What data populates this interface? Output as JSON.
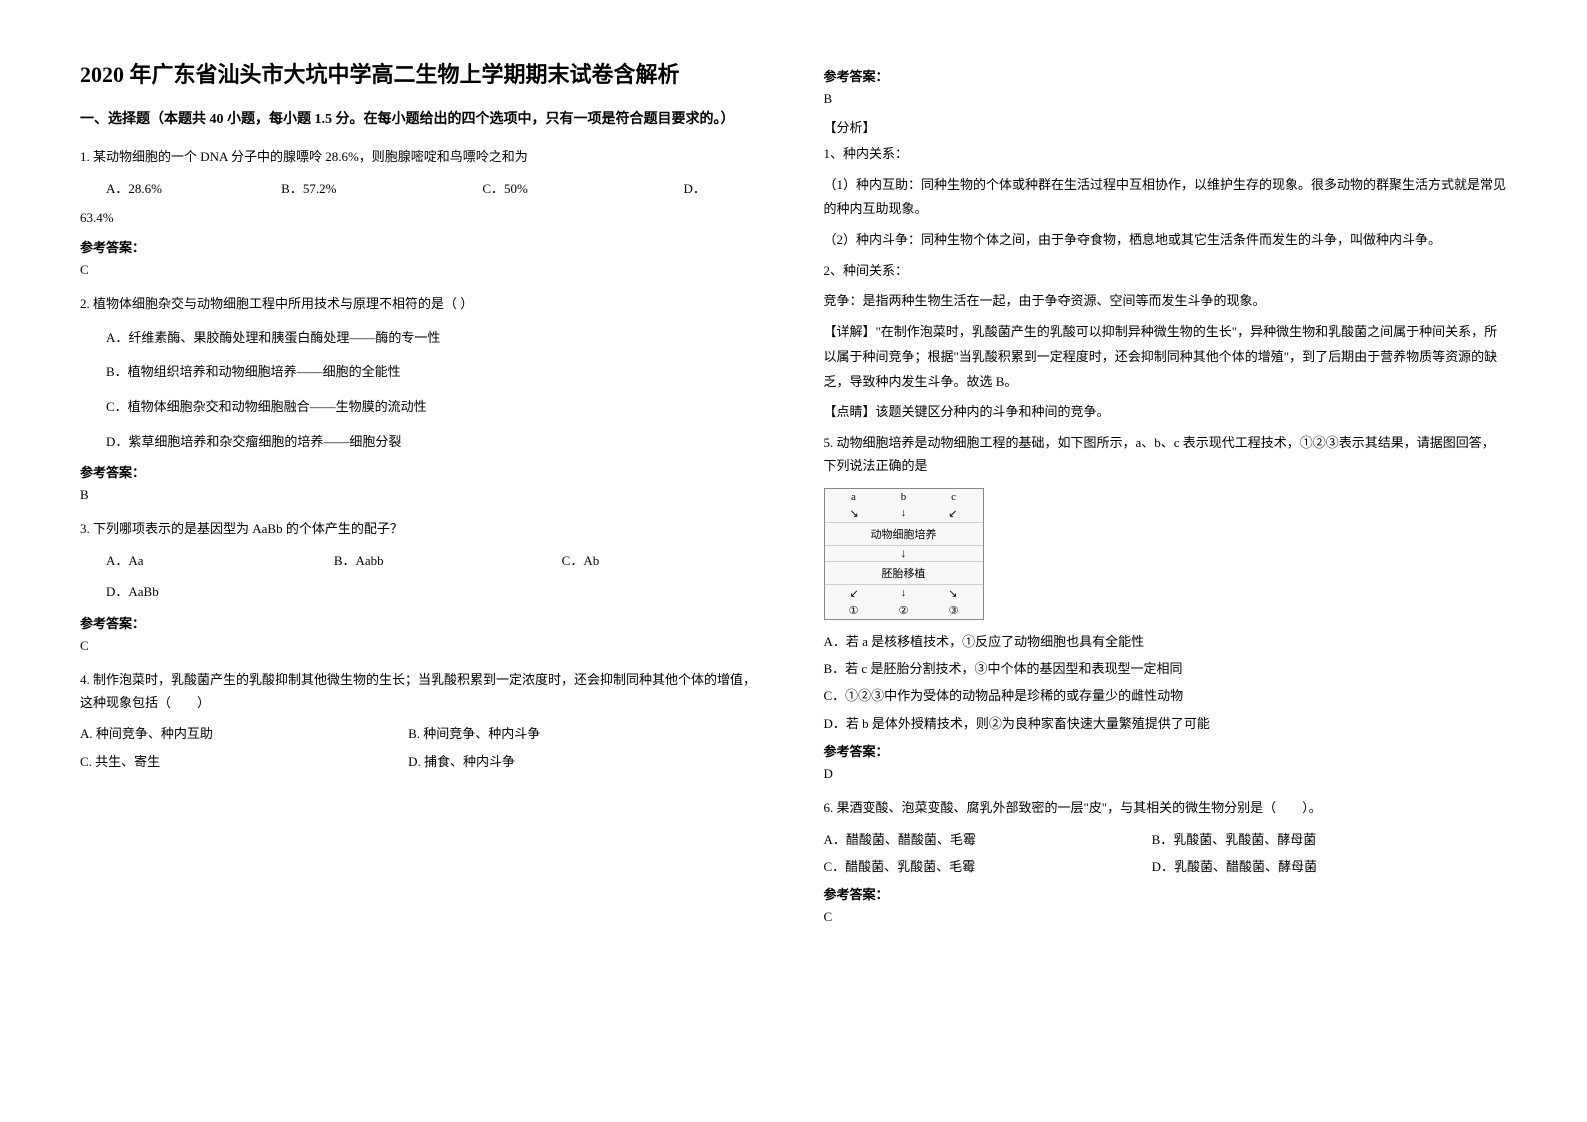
{
  "title": "2020 年广东省汕头市大坑中学高二生物上学期期末试卷含解析",
  "section": "一、选择题（本题共 40 小题，每小题 1.5 分。在每小题给出的四个选项中，只有一项是符合题目要求的。）",
  "answerLabel": "参考答案：",
  "q1": {
    "text": "1. 某动物细胞的一个 DNA 分子中的腺嘌呤 28.6%，则胞腺嘧啶和鸟嘌呤之和为",
    "A": "A．28.6%",
    "B": "B．57.2%",
    "C": "C．50%",
    "D": "D．",
    "D2": "63.4%",
    "answer": "C"
  },
  "q2": {
    "text": "2. 植物体细胞杂交与动物细胞工程中所用技术与原理不相符的是（  ）",
    "A": "A．纤维素酶、果胶酶处理和胰蛋白酶处理——酶的专一性",
    "B": "B．植物组织培养和动物细胞培养——细胞的全能性",
    "C": "C．植物体细胞杂交和动物细胞融合——生物膜的流动性",
    "D": "D．紫草细胞培养和杂交瘤细胞的培养——细胞分裂",
    "answer": "B"
  },
  "q3": {
    "text": "3. 下列哪项表示的是基因型为 AaBb 的个体产生的配子？",
    "A": "A．Aa",
    "B": "B．Aabb",
    "C": "C．Ab",
    "D": "D．AaBb",
    "answer": "C"
  },
  "q4": {
    "text": "4. 制作泡菜时，乳酸菌产生的乳酸抑制其他微生物的生长；当乳酸积累到一定浓度时，还会抑制同种其他个体的增值，这种现象包括（　　）",
    "A": "A. 种间竞争、种内互助",
    "B": "B. 种间竞争、种内斗争",
    "C": "C. 共生、寄生",
    "D": "D. 捕食、种内斗争",
    "answer": "B"
  },
  "q4analysis": {
    "fenxi": "【分析】",
    "p1": "1、种内关系：",
    "p1a": "（1）种内互助：同种生物的个体或种群在生活过程中互相协作，以维护生存的现象。很多动物的群聚生活方式就是常见的种内互助现象。",
    "p1b": "（2）种内斗争：同种生物个体之间，由于争夺食物，栖息地或其它生活条件而发生的斗争，叫做种内斗争。",
    "p2": "2、种间关系：",
    "p2a": "竞争：是指两种生物生活在一起，由于争夺资源、空间等而发生斗争的现象。",
    "xiangjie": "【详解】\"在制作泡菜时，乳酸菌产生的乳酸可以抑制异种微生物的生长\"，异种微生物和乳酸菌之间属于种间关系，所以属于种间竞争；根据\"当乳酸积累到一定程度时，还会抑制同种其他个体的增殖\"，到了后期由于营养物质等资源的缺乏，导致种内发生斗争。故选 B。",
    "dianjing": "【点睛】该题关键区分种内的斗争和种间的竞争。"
  },
  "q5": {
    "text": "5. 动物细胞培养是动物细胞工程的基础，如下图所示，a、b、c 表示现代工程技术，①②③表示其结果，请据图回答，下列说法正确的是",
    "diagram": {
      "top_a": "a",
      "top_b": "b",
      "top_c": "c",
      "mid": "动物细胞培养",
      "mid2": "胚胎移植",
      "bot_1": "①",
      "bot_2": "②",
      "bot_3": "③"
    },
    "A": "A．若 a 是核移植技术，①反应了动物细胞也具有全能性",
    "B": "B．若 c 是胚胎分割技术，③中个体的基因型和表现型一定相同",
    "C": "C．①②③中作为受体的动物品种是珍稀的或存量少的雌性动物",
    "D": "D．若 b 是体外授精技术，则②为良种家畜快速大量繁殖提供了可能",
    "answer": "D"
  },
  "q6": {
    "text": "6. 果酒变酸、泡菜变酸、腐乳外部致密的一层\"皮\"，与其相关的微生物分别是（　　）。",
    "A": "A．醋酸菌、醋酸菌、毛霉",
    "B": "B．乳酸菌、乳酸菌、酵母菌",
    "C": "C．醋酸菌、乳酸菌、毛霉",
    "D": "D．乳酸菌、醋酸菌、酵母菌",
    "answer": "C"
  }
}
